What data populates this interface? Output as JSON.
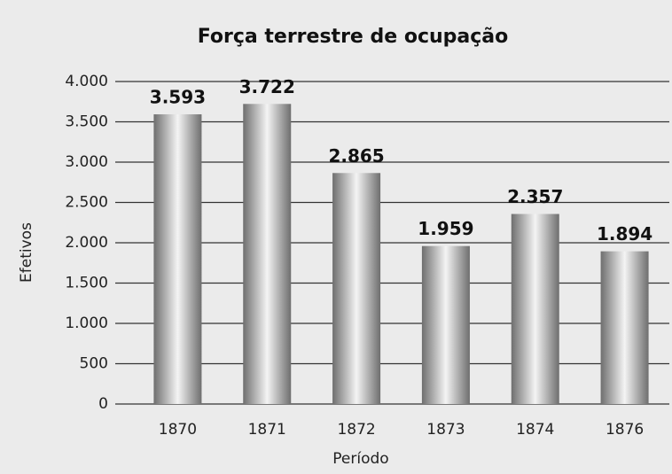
{
  "chart_data": {
    "type": "bar",
    "title": "Força terrestre de ocupação",
    "x_label": "Período",
    "y_label": "Efetivos",
    "categories": [
      "1870",
      "1871",
      "1872",
      "1873",
      "1874",
      "1876"
    ],
    "values": [
      3593,
      3722,
      2865,
      1959,
      2357,
      1894
    ],
    "value_labels": [
      "3.593",
      "3.722",
      "2.865",
      "1.959",
      "2.357",
      "1.894"
    ],
    "color": "#6e6e6e",
    "ylim": [
      0,
      4000
    ],
    "yticks": [
      0,
      500,
      {
        "value": 1000,
        "label": "1.000"
      },
      {
        "value": 1500,
        "label": "1.500"
      },
      {
        "value": 2000,
        "label": "2.000"
      },
      {
        "value": 2500,
        "label": "2.500"
      },
      {
        "value": 3000,
        "label": "3.000"
      },
      {
        "value": 3500,
        "label": "3.500"
      },
      {
        "value": 4000,
        "label": "4.000"
      }
    ],
    "grid": true
  }
}
